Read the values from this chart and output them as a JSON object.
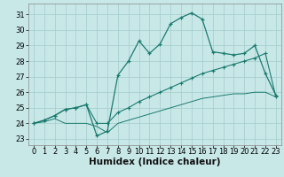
{
  "xlabel": "Humidex (Indice chaleur)",
  "xlim": [
    -0.5,
    23.5
  ],
  "ylim": [
    22.6,
    31.7
  ],
  "yticks": [
    23,
    24,
    25,
    26,
    27,
    28,
    29,
    30,
    31
  ],
  "xticks": [
    0,
    1,
    2,
    3,
    4,
    5,
    6,
    7,
    8,
    9,
    10,
    11,
    12,
    13,
    14,
    15,
    16,
    17,
    18,
    19,
    20,
    21,
    22,
    23
  ],
  "bg": "#c8e8e8",
  "grid_color": "#a8d0d0",
  "lc": "#1a7a6e",
  "line1_y": [
    24.0,
    24.2,
    24.5,
    24.9,
    25.0,
    25.2,
    23.2,
    23.5,
    27.1,
    28.0,
    29.3,
    28.5,
    29.1,
    30.4,
    30.8,
    31.1,
    30.7,
    28.6,
    28.5,
    28.4,
    28.5,
    29.0,
    27.2,
    25.8
  ],
  "line2_y": [
    24.0,
    24.2,
    24.5,
    24.9,
    25.0,
    25.2,
    24.0,
    24.0,
    24.7,
    25.0,
    25.4,
    25.7,
    26.0,
    26.3,
    26.6,
    26.9,
    27.2,
    27.4,
    27.6,
    27.8,
    28.0,
    28.2,
    28.5,
    25.7
  ],
  "line3_y": [
    24.0,
    24.1,
    24.3,
    24.0,
    24.0,
    24.0,
    23.8,
    23.4,
    24.0,
    24.2,
    24.4,
    24.6,
    24.8,
    25.0,
    25.2,
    25.4,
    25.6,
    25.7,
    25.8,
    25.9,
    25.9,
    26.0,
    26.0,
    25.7
  ],
  "tick_fontsize": 6.0,
  "xlabel_fontsize": 7.5
}
